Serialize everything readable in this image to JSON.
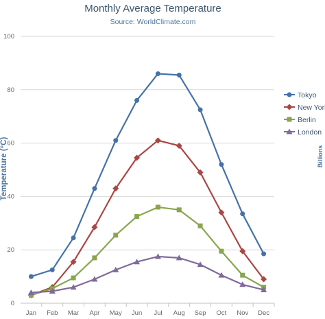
{
  "chart_data": {
    "type": "line",
    "title": "Monthly Average Temperature",
    "subtitle": "Source: WorldClimate.com",
    "ylabel": "Temperature (°C)",
    "secondary_ylabel": "Billions",
    "xlabel": "",
    "categories": [
      "Jan",
      "Feb",
      "Mar",
      "Apr",
      "May",
      "Jun",
      "Jul",
      "Aug",
      "Sep",
      "Oct",
      "Nov",
      "Dec"
    ],
    "ylim": [
      0,
      100
    ],
    "yticks": [
      0,
      20,
      40,
      60,
      80,
      100
    ],
    "grid": true,
    "legend": "right",
    "series": [
      {
        "name": "Tokyo",
        "color": "#4572a7",
        "marker": "circle",
        "values": [
          10,
          12.5,
          24.5,
          43,
          61,
          76,
          86,
          85.5,
          72.5,
          52,
          33.5,
          18.5
        ]
      },
      {
        "name": "New York",
        "color": "#aa4643",
        "marker": "diamond",
        "values": [
          3,
          6,
          15.5,
          28.5,
          43,
          54.5,
          61,
          59,
          49,
          34,
          19.5,
          9
        ]
      },
      {
        "name": "Berlin",
        "color": "#89a54e",
        "marker": "square",
        "values": [
          3,
          5.5,
          9.5,
          17,
          25.5,
          32.5,
          36,
          35,
          29,
          19.5,
          10.5,
          6
        ]
      },
      {
        "name": "London",
        "color": "#80699b",
        "marker": "triangle",
        "values": [
          4,
          4.5,
          6,
          9,
          12.5,
          15.5,
          17.5,
          17,
          14.5,
          10.5,
          7,
          5
        ]
      }
    ]
  }
}
